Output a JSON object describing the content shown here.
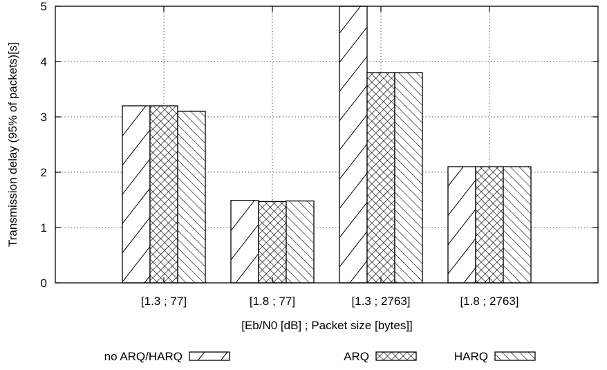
{
  "chart_data": {
    "type": "bar",
    "title": "",
    "xlabel": "[Eb/N0 [dB] ; Packet size [bytes]]",
    "ylabel": "Transmission delay (95% of packets)[s]",
    "ylim": [
      0,
      5
    ],
    "yticks": [
      "0",
      "1",
      "2",
      "3",
      "4",
      "5"
    ],
    "categories": [
      "[1.3 ; 77]",
      "[1.8 ; 77]",
      "[1.3 ; 2763]",
      "[1.8 ; 2763]"
    ],
    "grid": true,
    "legend_position": "bottom",
    "series": [
      {
        "name": "no ARQ/HARQ",
        "pattern": "wide-forward-diagonal",
        "values": [
          3.2,
          1.49,
          5.0,
          2.1
        ]
      },
      {
        "name": "ARQ",
        "pattern": "crosshatch",
        "values": [
          3.2,
          1.47,
          3.8,
          2.1
        ]
      },
      {
        "name": "HARQ",
        "pattern": "dense-back-diagonal",
        "values": [
          3.1,
          1.48,
          3.8,
          2.1
        ]
      }
    ]
  }
}
